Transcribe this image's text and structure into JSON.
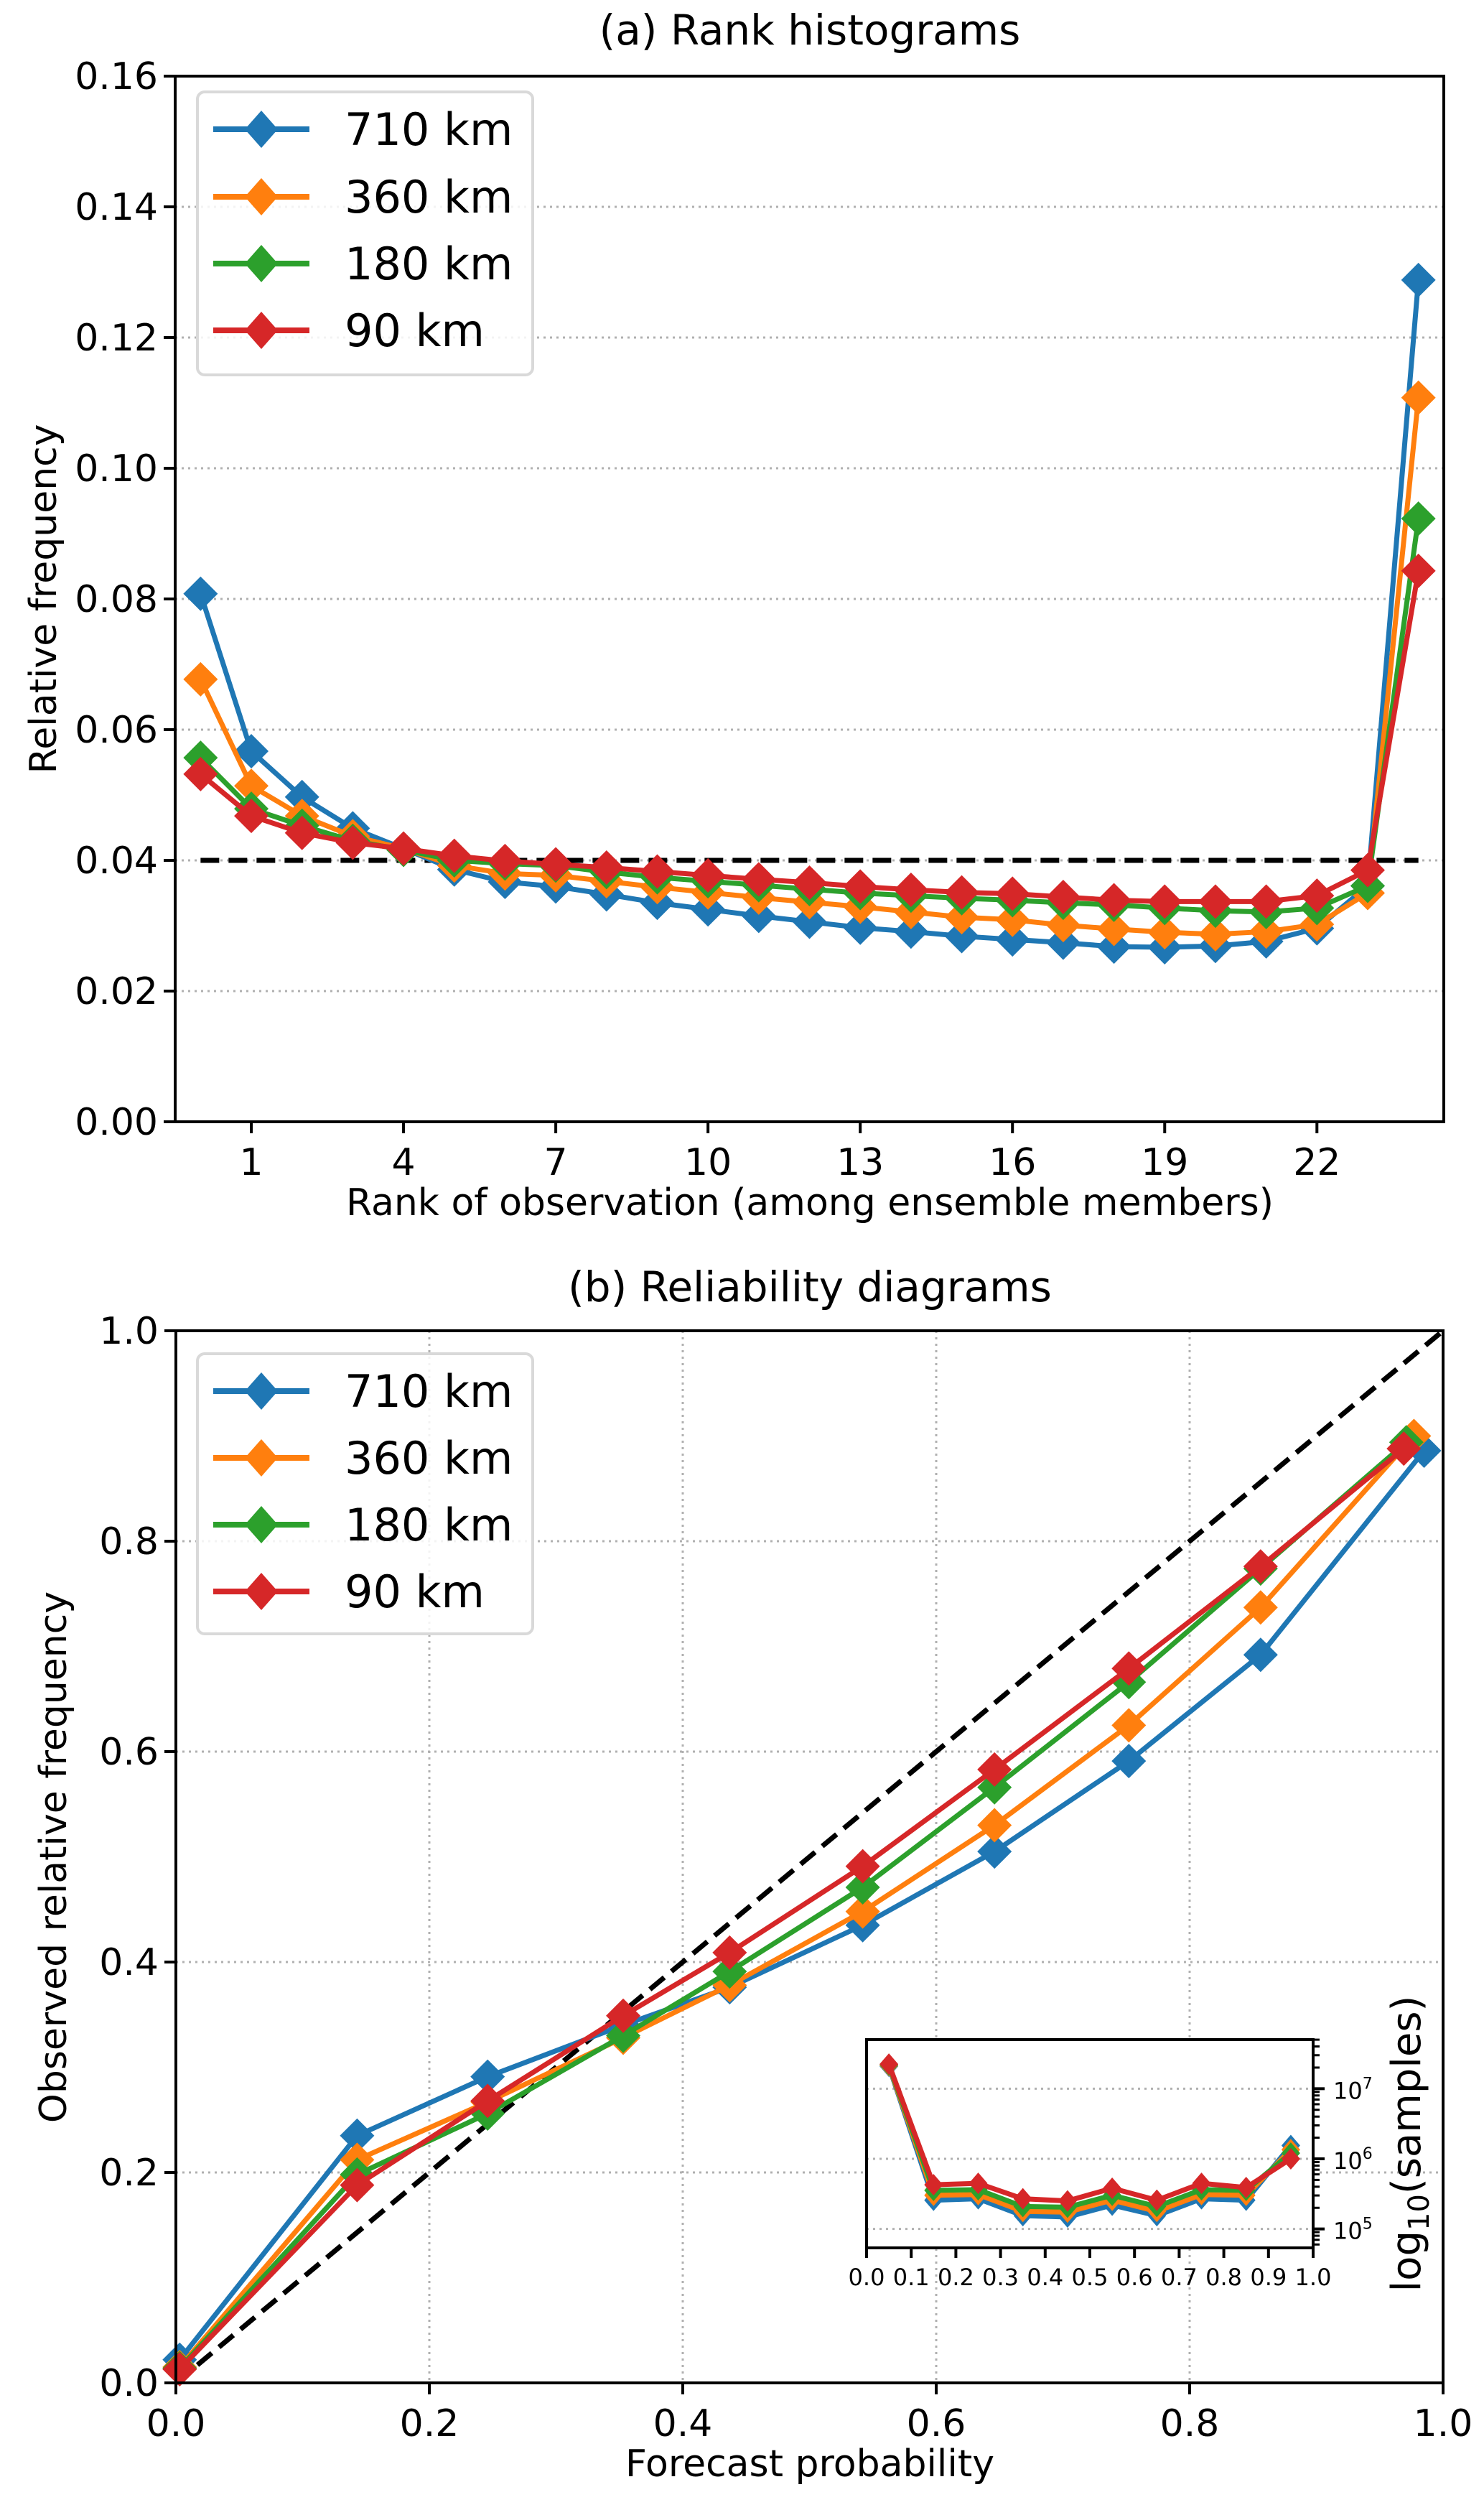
{
  "chart_data": [
    {
      "id": "rank",
      "type": "line",
      "title": "(a) Rank histograms",
      "xlabel": "Rank of observation (among ensemble members)",
      "ylabel": "Relative frequency",
      "xlim": [
        -0.5,
        24.5
      ],
      "ylim": [
        0,
        0.16
      ],
      "xticks": [
        1,
        4,
        7,
        10,
        13,
        16,
        19,
        22
      ],
      "xtick_labels": [
        "1",
        "4",
        "7",
        "10",
        "13",
        "16",
        "19",
        "22"
      ],
      "yticks": [
        0,
        0.02,
        0.04,
        0.06,
        0.08,
        0.1,
        0.12,
        0.14,
        0.16
      ],
      "ytick_labels": [
        "0.00",
        "0.02",
        "0.04",
        "0.06",
        "0.08",
        "0.10",
        "0.12",
        "0.14",
        "0.16"
      ],
      "grid": "y",
      "legend_position": "top-left",
      "reference_line": {
        "type": "horizontal",
        "y": 0.04,
        "x_range": [
          0,
          24
        ],
        "style": "dashed",
        "color": "#000000"
      },
      "x": [
        0,
        1,
        2,
        3,
        4,
        5,
        6,
        7,
        8,
        9,
        10,
        11,
        12,
        13,
        14,
        15,
        16,
        17,
        18,
        19,
        20,
        21,
        22,
        23,
        24
      ],
      "series": [
        {
          "name": "710 km",
          "color": "#1f77b4",
          "values": [
            0.0808,
            0.0567,
            0.0497,
            0.0449,
            0.0418,
            0.0386,
            0.0367,
            0.036,
            0.0348,
            0.0335,
            0.0325,
            0.0315,
            0.0306,
            0.0297,
            0.0291,
            0.0284,
            0.0279,
            0.0274,
            0.0268,
            0.0267,
            0.0269,
            0.0276,
            0.0296,
            0.0361,
            0.1288
          ]
        },
        {
          "name": "360 km",
          "color": "#ff7f0e",
          "values": [
            0.0677,
            0.0514,
            0.0468,
            0.0437,
            0.0418,
            0.0392,
            0.038,
            0.0377,
            0.0368,
            0.0359,
            0.0351,
            0.0343,
            0.0336,
            0.0329,
            0.0321,
            0.0313,
            0.0309,
            0.0301,
            0.0295,
            0.029,
            0.0287,
            0.0291,
            0.0302,
            0.035,
            0.1108
          ]
        },
        {
          "name": "180 km",
          "color": "#2ca02c",
          "values": [
            0.0557,
            0.0479,
            0.0453,
            0.043,
            0.0416,
            0.04,
            0.0395,
            0.0392,
            0.0382,
            0.0374,
            0.0368,
            0.0362,
            0.0356,
            0.035,
            0.0346,
            0.0342,
            0.0339,
            0.0335,
            0.0332,
            0.0327,
            0.0323,
            0.0321,
            0.0327,
            0.0361,
            0.0923
          ]
        },
        {
          "name": "90 km",
          "color": "#d62728",
          "values": [
            0.0532,
            0.0468,
            0.0442,
            0.0427,
            0.0418,
            0.0407,
            0.0399,
            0.0394,
            0.0389,
            0.0383,
            0.0377,
            0.0371,
            0.0366,
            0.036,
            0.0355,
            0.0351,
            0.0349,
            0.0344,
            0.0339,
            0.0337,
            0.0337,
            0.0337,
            0.0346,
            0.0385,
            0.0843
          ]
        }
      ]
    },
    {
      "id": "reliability",
      "type": "line",
      "title": "(b) Reliability diagrams",
      "xlabel": "Forecast probability",
      "ylabel": "Observed relative frequency",
      "xlim": [
        0,
        1
      ],
      "ylim": [
        0,
        1
      ],
      "xticks": [
        0,
        0.2,
        0.4,
        0.6,
        0.8,
        1.0
      ],
      "xtick_labels": [
        "0.0",
        "0.2",
        "0.4",
        "0.6",
        "0.8",
        "1.0"
      ],
      "yticks": [
        0,
        0.2,
        0.4,
        0.6,
        0.8,
        1.0
      ],
      "ytick_labels": [
        "0.0",
        "0.2",
        "0.4",
        "0.6",
        "0.8",
        "1.0"
      ],
      "grid": "both",
      "legend_position": "top-left",
      "reference_line": {
        "type": "diagonal",
        "from": [
          0,
          0
        ],
        "to": [
          1,
          1
        ],
        "style": "dashed",
        "color": "#000000"
      },
      "series": [
        {
          "name": "710 km",
          "color": "#1f77b4",
          "x": [
            0.003,
            0.143,
            0.246,
            0.353,
            0.437,
            0.542,
            0.646,
            0.752,
            0.856,
            0.985
          ],
          "y": [
            0.022,
            0.235,
            0.291,
            0.34,
            0.376,
            0.435,
            0.505,
            0.591,
            0.692,
            0.886
          ]
        },
        {
          "name": "360 km",
          "color": "#ff7f0e",
          "x": [
            0.003,
            0.143,
            0.246,
            0.353,
            0.437,
            0.542,
            0.646,
            0.752,
            0.856,
            0.977
          ],
          "y": [
            0.015,
            0.212,
            0.267,
            0.328,
            0.378,
            0.448,
            0.53,
            0.625,
            0.737,
            0.9
          ]
        },
        {
          "name": "180 km",
          "color": "#2ca02c",
          "x": [
            0.003,
            0.143,
            0.246,
            0.353,
            0.437,
            0.542,
            0.646,
            0.752,
            0.856,
            0.971
          ],
          "y": [
            0.014,
            0.198,
            0.256,
            0.33,
            0.391,
            0.471,
            0.566,
            0.666,
            0.774,
            0.894
          ]
        },
        {
          "name": "90 km",
          "color": "#d62728",
          "x": [
            0.003,
            0.143,
            0.246,
            0.353,
            0.437,
            0.542,
            0.646,
            0.752,
            0.856,
            0.969
          ],
          "y": [
            0.013,
            0.188,
            0.268,
            0.349,
            0.409,
            0.491,
            0.583,
            0.679,
            0.776,
            0.888
          ]
        }
      ]
    },
    {
      "id": "samples-inset",
      "type": "line",
      "title": "",
      "xlabel": "",
      "ylabel": "log10(samples)",
      "ylabel_parts": {
        "prefix": "log",
        "subscript": "10",
        "suffix": "(samples)"
      },
      "yscale": "log",
      "xlim": [
        0,
        1
      ],
      "ylim_log10": [
        4.73,
        7.7
      ],
      "xticks": [
        0,
        0.1,
        0.2,
        0.3,
        0.4,
        0.5,
        0.6,
        0.7,
        0.8,
        0.9,
        1.0
      ],
      "xtick_labels": [
        "0.0",
        "0.1",
        "0.2",
        "0.3",
        "0.4",
        "0.5",
        "0.6",
        "0.7",
        "0.8",
        "0.9",
        "1.0"
      ],
      "yticks_log10": [
        5,
        6,
        7
      ],
      "ytick_labels": [
        {
          "base": "10",
          "exp": "5"
        },
        {
          "base": "10",
          "exp": "6"
        },
        {
          "base": "10",
          "exp": "7"
        }
      ],
      "grid": "y",
      "x": [
        0.05,
        0.15,
        0.25,
        0.35,
        0.45,
        0.55,
        0.65,
        0.75,
        0.85,
        0.95
      ],
      "series": [
        {
          "name": "710 km",
          "color": "#1f77b4",
          "log10_values": [
            7.32,
            5.41,
            5.43,
            5.19,
            5.17,
            5.34,
            5.19,
            5.43,
            5.41,
            6.19
          ]
        },
        {
          "name": "360 km",
          "color": "#ff7f0e",
          "log10_values": [
            7.33,
            5.48,
            5.49,
            5.25,
            5.24,
            5.41,
            5.25,
            5.49,
            5.48,
            6.13
          ]
        },
        {
          "name": "180 km",
          "color": "#2ca02c",
          "log10_values": [
            7.34,
            5.55,
            5.56,
            5.32,
            5.31,
            5.48,
            5.32,
            5.56,
            5.55,
            6.08
          ]
        },
        {
          "name": "90 km",
          "color": "#d62728",
          "log10_values": [
            7.35,
            5.63,
            5.65,
            5.43,
            5.4,
            5.58,
            5.41,
            5.65,
            5.59,
            6.0
          ]
        }
      ]
    }
  ]
}
